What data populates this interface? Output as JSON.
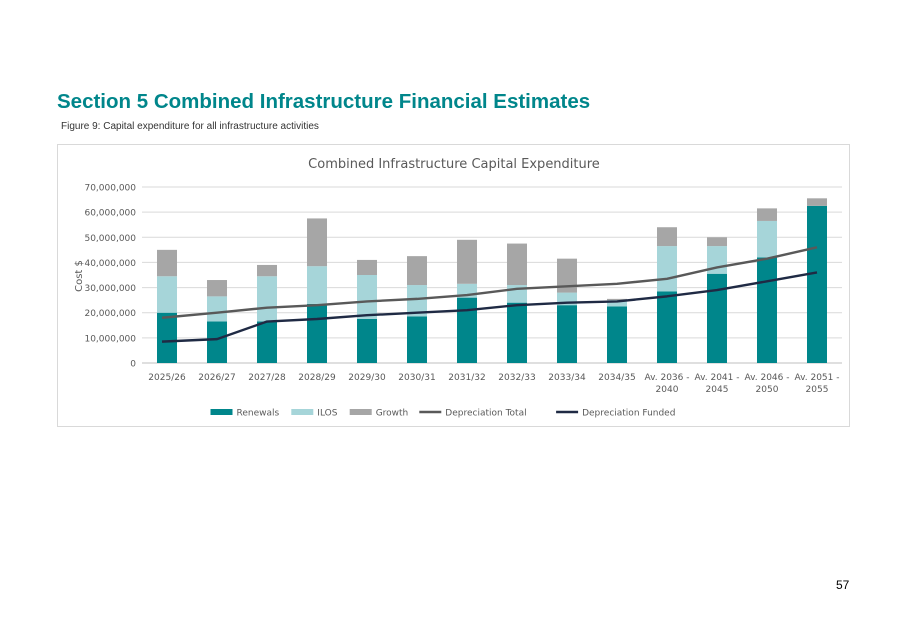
{
  "heading": "Section 5 Combined Infrastructure Financial Estimates",
  "caption": "Figure 9: Capital expenditure for all infrastructure activities",
  "page_number": "57",
  "chart_data": {
    "type": "bar",
    "stacked": true,
    "title": "Combined Infrastructure Capital Expenditure",
    "xlabel": "",
    "ylabel": "Cost $",
    "ylim": [
      0,
      70000000
    ],
    "yticks": [
      0,
      10000000,
      20000000,
      30000000,
      40000000,
      50000000,
      60000000,
      70000000
    ],
    "ytick_labels": [
      "0",
      "10,000,000",
      "20,000,000",
      "30,000,000",
      "40,000,000",
      "50,000,000",
      "60,000,000",
      "70,000,000"
    ],
    "grid": true,
    "legend_position": "bottom",
    "categories": [
      "2025/26",
      "2026/27",
      "2027/28",
      "2028/29",
      "2029/30",
      "2030/31",
      "2031/32",
      "2032/33",
      "2033/34",
      "2034/35",
      "Av. 2036 - 2040",
      "Av. 2041 - 2045",
      "Av. 2046 - 2050",
      "Av. 2051 - 2055"
    ],
    "category_lines": [
      [
        "2025/26"
      ],
      [
        "2026/27"
      ],
      [
        "2027/28"
      ],
      [
        "2028/29"
      ],
      [
        "2029/30"
      ],
      [
        "2030/31"
      ],
      [
        "2031/32"
      ],
      [
        "2032/33"
      ],
      [
        "2033/34"
      ],
      [
        "2034/35"
      ],
      [
        "Av. 2036 -",
        "2040"
      ],
      [
        "Av. 2041 -",
        "2045"
      ],
      [
        "Av. 2046 -",
        "2050"
      ],
      [
        "Av. 2051 -",
        "2055"
      ]
    ],
    "bar_series": [
      {
        "name": "Renewals",
        "color": "#00868b",
        "values": [
          20000000,
          16500000,
          16500000,
          23500000,
          17500000,
          18500000,
          26000000,
          24000000,
          23000000,
          22500000,
          28500000,
          35500000,
          42000000,
          62500000
        ]
      },
      {
        "name": "ILOS",
        "color": "#a6d5d9",
        "values": [
          14500000,
          10000000,
          18000000,
          15000000,
          17500000,
          12500000,
          5500000,
          7000000,
          5000000,
          2500000,
          18000000,
          11000000,
          14500000,
          0
        ]
      },
      {
        "name": "Growth",
        "color": "#a6a6a6",
        "values": [
          10500000,
          6500000,
          4500000,
          19000000,
          6000000,
          11500000,
          17500000,
          16500000,
          13500000,
          500000,
          7500000,
          3500000,
          5000000,
          3000000
        ]
      }
    ],
    "line_series": [
      {
        "name": "Depreciation Total",
        "color": "#595959",
        "values": [
          18000000,
          20000000,
          22000000,
          23000000,
          24500000,
          25500000,
          27000000,
          29500000,
          30500000,
          31500000,
          33500000,
          38000000,
          41500000,
          46000000
        ]
      },
      {
        "name": "Depreciation Funded",
        "color": "#1f2a44",
        "values": [
          8500000,
          9500000,
          16500000,
          17500000,
          19000000,
          20000000,
          21000000,
          23000000,
          24000000,
          24500000,
          26500000,
          29000000,
          32500000,
          36000000
        ]
      }
    ]
  }
}
